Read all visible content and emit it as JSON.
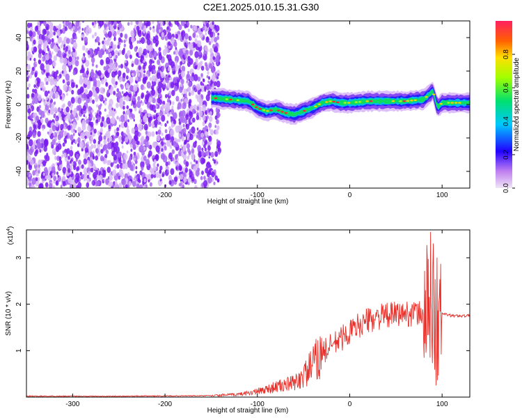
{
  "title": "C2E1.2025.010.15.31.G30",
  "chart_data": [
    {
      "type": "heatmap",
      "xlabel": "Height of straight line (km)",
      "ylabel": "Frequency (Hz)",
      "xlim": [
        -350,
        130
      ],
      "ylim": [
        -50,
        50
      ],
      "x_ticks": [
        "-300",
        "-200",
        "-100",
        "0",
        "100"
      ],
      "y_ticks": [
        "-40",
        "-20",
        "0",
        "20",
        "40"
      ],
      "colorbar": {
        "label": "Normalized spectral amplitude",
        "range": [
          0.0,
          1.0
        ],
        "ticks": [
          "0.0",
          "0.2",
          "0.4",
          "0.6",
          "0.8"
        ]
      },
      "regions": [
        {
          "description_x_range": [
            -350,
            -150
          ],
          "kind": "noise",
          "level": 0.2
        },
        {
          "description_x_range": [
            -150,
            130
          ],
          "kind": "narrow-band",
          "center_hz": 0,
          "level": 0.6
        }
      ],
      "band_center_hz": [
        [
          -150,
          4
        ],
        [
          -130,
          3
        ],
        [
          -110,
          2
        ],
        [
          -100,
          -2
        ],
        [
          -90,
          -4
        ],
        [
          -80,
          -3
        ],
        [
          -70,
          -5
        ],
        [
          -60,
          -6
        ],
        [
          -50,
          -4
        ],
        [
          -40,
          -2
        ],
        [
          -30,
          1
        ],
        [
          -20,
          2
        ],
        [
          -10,
          1
        ],
        [
          0,
          1
        ],
        [
          20,
          2
        ],
        [
          40,
          2
        ],
        [
          60,
          2
        ],
        [
          80,
          3
        ],
        [
          90,
          8
        ],
        [
          95,
          -2
        ],
        [
          100,
          1
        ],
        [
          110,
          1
        ],
        [
          130,
          1
        ]
      ]
    },
    {
      "type": "line",
      "xlabel": "Height of straight line (km)",
      "ylabel": "SNR (10 * v/v)",
      "y_scale_label": "(x10",
      "y_scale_exp": "4",
      "xlim": [
        -350,
        130
      ],
      "ylim": [
        0,
        3.6
      ],
      "x_ticks": [
        "-300",
        "-200",
        "-100",
        "0",
        "100"
      ],
      "y_ticks": [
        "1",
        "2",
        "3"
      ],
      "series": [
        {
          "color": "#e8302a",
          "trend": [
            [
              -350,
              0.02
            ],
            [
              -250,
              0.02
            ],
            [
              -150,
              0.03
            ],
            [
              -120,
              0.06
            ],
            [
              -100,
              0.12
            ],
            [
              -80,
              0.22
            ],
            [
              -60,
              0.3
            ],
            [
              -50,
              0.45
            ],
            [
              -40,
              0.7
            ],
            [
              -30,
              0.95
            ],
            [
              -20,
              1.1
            ],
            [
              -10,
              1.25
            ],
            [
              0,
              1.4
            ],
            [
              10,
              1.55
            ],
            [
              20,
              1.65
            ],
            [
              30,
              1.72
            ],
            [
              40,
              1.75
            ],
            [
              50,
              1.78
            ],
            [
              60,
              1.8
            ],
            [
              70,
              1.8
            ],
            [
              80,
              1.8
            ],
            [
              85,
              1.85
            ],
            [
              90,
              2.2
            ],
            [
              95,
              1.5
            ],
            [
              100,
              1.8
            ],
            [
              110,
              1.75
            ],
            [
              130,
              1.75
            ]
          ]
        }
      ]
    }
  ]
}
